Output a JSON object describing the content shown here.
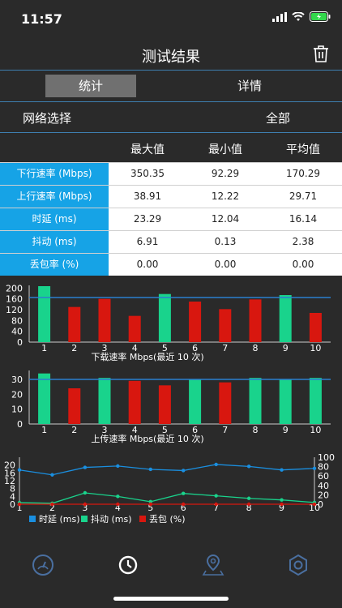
{
  "status": {
    "time": "11:57"
  },
  "nav": {
    "title": "测试结果"
  },
  "segments": {
    "stats": "统计",
    "details": "详情"
  },
  "network": {
    "label": "网络选择",
    "value": "全部"
  },
  "table": {
    "headers": [
      "最大值",
      "最小值",
      "平均值"
    ],
    "rows": [
      {
        "label": "下行速率 (Mbps)",
        "values": [
          "350.35",
          "92.29",
          "170.29"
        ]
      },
      {
        "label": "上行速率 (Mbps)",
        "values": [
          "38.91",
          "12.22",
          "29.71"
        ]
      },
      {
        "label": "时延 (ms)",
        "values": [
          "23.29",
          "12.04",
          "16.14"
        ]
      },
      {
        "label": "抖动 (ms)",
        "values": [
          "6.91",
          "0.13",
          "2.38"
        ]
      },
      {
        "label": "丢包率 (%)",
        "values": [
          "0.00",
          "0.00",
          "0.00"
        ]
      }
    ]
  },
  "colors": {
    "green": "#19d38c",
    "red": "#d8170f",
    "blue": "#1a8fe0",
    "axis": "#cccccc",
    "avg": "#2a7fd0"
  },
  "chart_data": [
    {
      "type": "bar",
      "title": "下载速率 Mbps(最近 10 次)",
      "categories": [
        "1",
        "2",
        "3",
        "4",
        "5",
        "6",
        "7",
        "8",
        "9",
        "10"
      ],
      "values": [
        207,
        130,
        160,
        97,
        178,
        150,
        122,
        158,
        174,
        108
      ],
      "bar_colors": [
        "green",
        "red",
        "red",
        "red",
        "green",
        "red",
        "red",
        "red",
        "green",
        "red"
      ],
      "yticks": [
        0,
        40,
        80,
        120,
        160,
        200
      ],
      "ylim": [
        0,
        210
      ],
      "average_line": 165
    },
    {
      "type": "bar",
      "title": "上传速率 Mbps(最近 10 次)",
      "categories": [
        "1",
        "2",
        "3",
        "4",
        "5",
        "6",
        "7",
        "8",
        "9",
        "10"
      ],
      "values": [
        34,
        24,
        31,
        29,
        26,
        30,
        28,
        31,
        30,
        31
      ],
      "bar_colors": [
        "green",
        "red",
        "green",
        "red",
        "red",
        "green",
        "red",
        "green",
        "green",
        "green"
      ],
      "yticks": [
        0,
        10,
        20,
        30
      ],
      "ylim": [
        0,
        36
      ],
      "average_line": 30
    },
    {
      "type": "line",
      "x": [
        1,
        2,
        3,
        4,
        5,
        6,
        7,
        8,
        9,
        10
      ],
      "left_yticks": [
        0,
        4,
        8,
        12,
        16,
        20
      ],
      "left_ylim": [
        0,
        24
      ],
      "right_yticks": [
        0,
        20,
        40,
        60,
        80,
        100
      ],
      "right_ylim": [
        0,
        100
      ],
      "legend": [
        "时延 (ms)",
        "抖动 (ms)",
        "丢包 (%)"
      ],
      "series": [
        {
          "name": "时延 (ms)",
          "color": "blue",
          "values": [
            17.5,
            15.0,
            18.8,
            19.5,
            17.8,
            17.2,
            20.3,
            19.3,
            17.5,
            18.3
          ]
        },
        {
          "name": "抖动 (ms)",
          "color": "green",
          "values": [
            0.8,
            0.5,
            5.8,
            4.0,
            1.3,
            5.5,
            4.3,
            3.0,
            2.2,
            0.9
          ]
        },
        {
          "name": "丢包 (%)",
          "color": "red",
          "values": [
            0,
            0,
            0,
            0,
            0,
            0,
            0,
            0,
            0,
            0
          ]
        }
      ]
    }
  ],
  "tabs": [
    "speed-icon",
    "history-icon",
    "location-icon",
    "settings-icon"
  ]
}
